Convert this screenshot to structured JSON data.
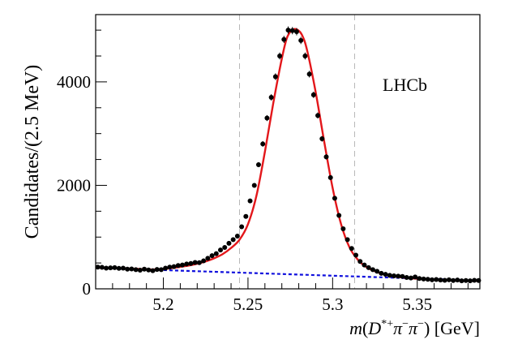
{
  "chart_data": {
    "type": "scatter",
    "title": "",
    "xlabel": "m(D*+π−π−) [GeV]",
    "xlabel_parts": {
      "m": "m",
      "open": "(",
      "D": "D",
      "sup": "*+",
      "pi1": "π",
      "minus1": "−",
      "pi2": "π",
      "minus2": "−",
      "close": ")",
      "unit": " [GeV]"
    },
    "ylabel": "Candidates/(2.5 MeV)",
    "annotation": "LHCb",
    "xlim": [
      5.16,
      5.387
    ],
    "ylim": [
      0,
      5300
    ],
    "x_ticks": [
      5.2,
      5.25,
      5.3,
      5.35
    ],
    "x_tick_labels": [
      "5.2",
      "5.25",
      "5.3",
      "5.35"
    ],
    "y_ticks": [
      0,
      2000,
      4000
    ],
    "y_tick_labels": [
      "0",
      "2000",
      "4000"
    ],
    "signal_window": [
      5.245,
      5.313
    ],
    "colors": {
      "data": "#000000",
      "total_fit": "#e3171b",
      "background": "#1010dd",
      "window": "#b8b8b8"
    },
    "series": [
      {
        "name": "Data",
        "x": [
          5.16125,
          5.16375,
          5.16625,
          5.16875,
          5.17125,
          5.17375,
          5.17625,
          5.17875,
          5.18125,
          5.18375,
          5.18625,
          5.18875,
          5.19125,
          5.19375,
          5.19625,
          5.19875,
          5.20125,
          5.20375,
          5.20625,
          5.20875,
          5.21125,
          5.21375,
          5.21625,
          5.21875,
          5.22125,
          5.22375,
          5.22625,
          5.22875,
          5.23125,
          5.23375,
          5.23625,
          5.23875,
          5.24125,
          5.24375,
          5.24625,
          5.24875,
          5.25125,
          5.25375,
          5.25625,
          5.25875,
          5.26125,
          5.26375,
          5.26625,
          5.26875,
          5.27125,
          5.27375,
          5.27625,
          5.27875,
          5.28125,
          5.28375,
          5.28625,
          5.28875,
          5.29125,
          5.29375,
          5.29625,
          5.29875,
          5.30125,
          5.30375,
          5.30625,
          5.30875,
          5.31125,
          5.31375,
          5.31625,
          5.31875,
          5.32125,
          5.32375,
          5.32625,
          5.32875,
          5.33125,
          5.33375,
          5.33625,
          5.33875,
          5.34125,
          5.34375,
          5.34625,
          5.34875,
          5.35125,
          5.35375,
          5.35625,
          5.35875,
          5.36125,
          5.36375,
          5.36625,
          5.36875,
          5.37125,
          5.37375,
          5.37625,
          5.37875,
          5.38125,
          5.38375,
          5.38625
        ],
        "y": [
          420,
          415,
          400,
          405,
          410,
          395,
          400,
          380,
          385,
          370,
          360,
          380,
          365,
          350,
          375,
          370,
          400,
          420,
          430,
          450,
          460,
          480,
          490,
          510,
          505,
          540,
          590,
          640,
          680,
          750,
          800,
          880,
          950,
          1020,
          1200,
          1400,
          1700,
          2000,
          2400,
          2800,
          3300,
          3700,
          4100,
          4500,
          4820,
          5000,
          4990,
          4970,
          4800,
          4500,
          4150,
          3750,
          3350,
          2900,
          2550,
          2150,
          1750,
          1420,
          1160,
          950,
          780,
          650,
          530,
          460,
          410,
          370,
          340,
          300,
          280,
          260,
          250,
          245,
          240,
          220,
          210,
          230,
          200,
          190,
          185,
          175,
          180,
          170,
          165,
          175,
          160,
          170,
          155,
          160,
          155,
          165,
          160
        ]
      },
      {
        "name": "Total fit",
        "x": [
          5.16,
          5.165,
          5.17,
          5.175,
          5.18,
          5.185,
          5.19,
          5.195,
          5.2,
          5.205,
          5.21,
          5.215,
          5.22,
          5.225,
          5.23,
          5.235,
          5.24,
          5.245,
          5.25,
          5.255,
          5.26,
          5.265,
          5.27,
          5.273,
          5.276,
          5.279,
          5.282,
          5.285,
          5.29,
          5.295,
          5.3,
          5.305,
          5.31,
          5.315,
          5.32,
          5.325,
          5.33,
          5.335,
          5.34,
          5.345,
          5.35,
          5.355,
          5.36,
          5.365,
          5.37,
          5.375,
          5.38,
          5.387
        ],
        "y": [
          410,
          405,
          400,
          395,
          390,
          385,
          375,
          375,
          385,
          400,
          425,
          450,
          485,
          530,
          590,
          670,
          790,
          950,
          1250,
          1800,
          2650,
          3600,
          4450,
          4850,
          5000,
          5010,
          4900,
          4600,
          3800,
          2850,
          1950,
          1250,
          800,
          560,
          420,
          340,
          285,
          250,
          225,
          208,
          195,
          185,
          177,
          170,
          165,
          160,
          158,
          155
        ]
      },
      {
        "name": "Background",
        "x": [
          5.16,
          5.387
        ],
        "y": [
          405,
          160
        ]
      }
    ]
  }
}
